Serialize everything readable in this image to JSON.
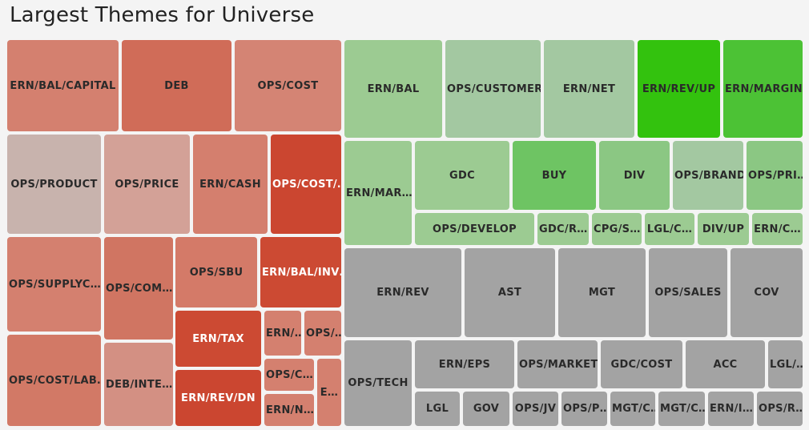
{
  "chart_data": {
    "type": "treemap",
    "title": "Largest Themes for Universe",
    "tiles": [
      {
        "label": "ERN/BAL/CAPITAL",
        "group": "negative",
        "color": "#d4806f"
      },
      {
        "label": "DEB",
        "group": "negative",
        "color": "#d06c58"
      },
      {
        "label": "OPS/COST",
        "group": "negative",
        "color": "#d48474"
      },
      {
        "label": "OPS/PRODUCT",
        "group": "negative",
        "color": "#c8b3ad"
      },
      {
        "label": "OPS/PRICE",
        "group": "negative",
        "color": "#d3a197"
      },
      {
        "label": "ERN/CASH",
        "group": "negative",
        "color": "#d47f6e"
      },
      {
        "label": "OPS/COST/…",
        "group": "negative",
        "color": "#cb4630"
      },
      {
        "label": "OPS/SUPPLYC…",
        "group": "negative",
        "color": "#d4806f"
      },
      {
        "label": "OPS/COM…",
        "group": "negative",
        "color": "#d07562"
      },
      {
        "label": "OPS/SBU",
        "group": "negative",
        "color": "#d47a68"
      },
      {
        "label": "ERN/BAL/INV…",
        "group": "negative",
        "color": "#cc4a33"
      },
      {
        "label": "ERN/TAX",
        "group": "negative",
        "color": "#cc4a33"
      },
      {
        "label": "ERN/…",
        "group": "negative",
        "color": "#d4806f"
      },
      {
        "label": "OPS/…",
        "group": "negative",
        "color": "#d4806f"
      },
      {
        "label": "OPS/COST/LAB…",
        "group": "negative",
        "color": "#d27966"
      },
      {
        "label": "DEB/INTE…",
        "group": "negative",
        "color": "#d39083"
      },
      {
        "label": "ERN/REV/DN",
        "group": "negative",
        "color": "#cb4630"
      },
      {
        "label": "OPS/C…",
        "group": "negative",
        "color": "#d4806f"
      },
      {
        "label": "E…",
        "group": "negative",
        "color": "#d4806f"
      },
      {
        "label": "ERN/N…",
        "group": "negative",
        "color": "#d4806f"
      },
      {
        "label": "ERN/BAL",
        "group": "positive",
        "color": "#9ccb92"
      },
      {
        "label": "OPS/CUSTOMER",
        "group": "positive",
        "color": "#a3c8a1"
      },
      {
        "label": "ERN/NET",
        "group": "positive",
        "color": "#a3c8a1"
      },
      {
        "label": "ERN/REV/UP",
        "group": "positive",
        "color": "#33c20e"
      },
      {
        "label": "ERN/MARGIN",
        "group": "positive",
        "color": "#4cc235"
      },
      {
        "label": "ERN/MAR…",
        "group": "positive",
        "color": "#9ccb92"
      },
      {
        "label": "GDC",
        "group": "positive",
        "color": "#9ccb92"
      },
      {
        "label": "BUY",
        "group": "positive",
        "color": "#6ec463"
      },
      {
        "label": "DIV",
        "group": "positive",
        "color": "#8bc783"
      },
      {
        "label": "OPS/BRAND",
        "group": "positive",
        "color": "#a3c8a1"
      },
      {
        "label": "OPS/PRI…",
        "group": "positive",
        "color": "#8bc783"
      },
      {
        "label": "OPS/DEVELOP",
        "group": "positive",
        "color": "#9ccb92"
      },
      {
        "label": "GDC/R…",
        "group": "positive",
        "color": "#9ccb92"
      },
      {
        "label": "CPG/S…",
        "group": "positive",
        "color": "#9ccb92"
      },
      {
        "label": "LGL/C…",
        "group": "positive",
        "color": "#9ccb92"
      },
      {
        "label": "DIV/UP",
        "group": "positive",
        "color": "#9ccb92"
      },
      {
        "label": "ERN/C…",
        "group": "positive",
        "color": "#9ccb92"
      },
      {
        "label": "ERN/REV",
        "group": "neutral",
        "color": "#a3a3a3"
      },
      {
        "label": "AST",
        "group": "neutral",
        "color": "#a3a3a3"
      },
      {
        "label": "MGT",
        "group": "neutral",
        "color": "#a3a3a3"
      },
      {
        "label": "OPS/SALES",
        "group": "neutral",
        "color": "#a3a3a3"
      },
      {
        "label": "COV",
        "group": "neutral",
        "color": "#a3a3a3"
      },
      {
        "label": "OPS/TECH",
        "group": "neutral",
        "color": "#a3a3a3"
      },
      {
        "label": "ERN/EPS",
        "group": "neutral",
        "color": "#a3a3a3"
      },
      {
        "label": "OPS/MARKET",
        "group": "neutral",
        "color": "#a3a3a3"
      },
      {
        "label": "GDC/COST",
        "group": "neutral",
        "color": "#a3a3a3"
      },
      {
        "label": "ACC",
        "group": "neutral",
        "color": "#a3a3a3"
      },
      {
        "label": "LGL/…",
        "group": "neutral",
        "color": "#a3a3a3"
      },
      {
        "label": "LGL",
        "group": "neutral",
        "color": "#a3a3a3"
      },
      {
        "label": "GOV",
        "group": "neutral",
        "color": "#a3a3a3"
      },
      {
        "label": "OPS/JV",
        "group": "neutral",
        "color": "#a3a3a3"
      },
      {
        "label": "OPS/P…",
        "group": "neutral",
        "color": "#a3a3a3"
      },
      {
        "label": "MGT/C…",
        "group": "neutral",
        "color": "#a3a3a3"
      },
      {
        "label": "MGT/C…",
        "group": "neutral",
        "color": "#a3a3a3"
      },
      {
        "label": "ERN/I…",
        "group": "neutral",
        "color": "#a3a3a3"
      },
      {
        "label": "OPS/R…",
        "group": "neutral",
        "color": "#a3a3a3"
      }
    ]
  }
}
